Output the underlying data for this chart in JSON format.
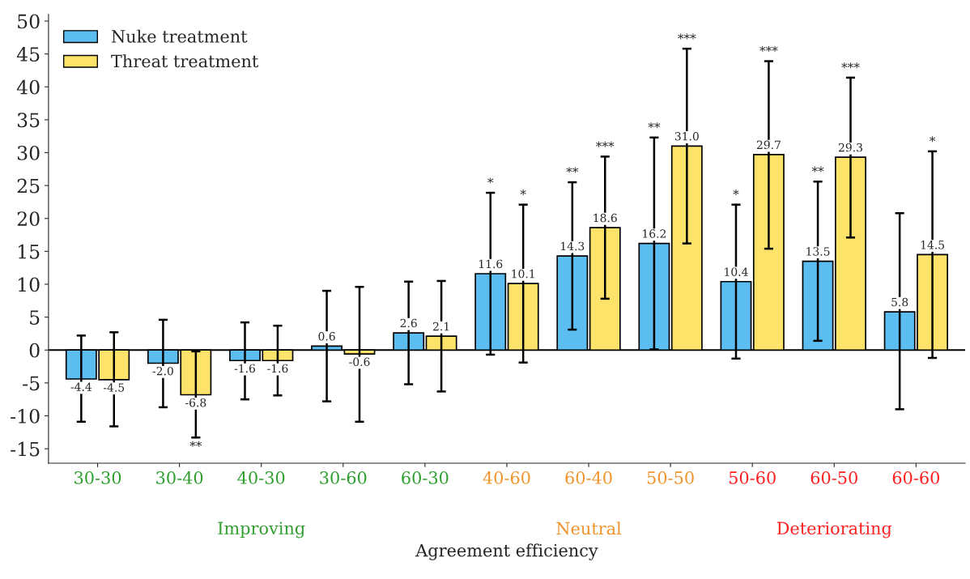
{
  "chart_data": {
    "type": "bar",
    "xlabel": "Agreement efficiency",
    "categories": [
      "30-30",
      "30-40",
      "40-30",
      "30-60",
      "60-30",
      "40-60",
      "60-40",
      "50-50",
      "50-60",
      "60-50",
      "60-60"
    ],
    "series": [
      {
        "name": "Nuke treatment",
        "color": "#5bbdf0",
        "values": [
          -4.4,
          -2.0,
          -1.6,
          0.6,
          2.6,
          11.6,
          14.3,
          16.2,
          10.4,
          13.5,
          5.8
        ],
        "value_labels": [
          "-4.4",
          "-2.0",
          "-1.6",
          "0.6",
          "2.6",
          "11.6",
          "14.3",
          "16.2",
          "10.4",
          "13.5",
          "5.8"
        ],
        "errors": [
          [
            -10.9,
            2.2
          ],
          [
            -8.7,
            4.6
          ],
          [
            -7.5,
            4.2
          ],
          [
            -7.8,
            9.0
          ],
          [
            -5.2,
            10.4
          ],
          [
            -0.7,
            23.9
          ],
          [
            3.1,
            25.5
          ],
          [
            0.1,
            32.3
          ],
          [
            -1.3,
            22.1
          ],
          [
            1.4,
            25.6
          ],
          [
            -9.0,
            20.8
          ]
        ]
      },
      {
        "name": "Threat treatment",
        "color": "#fde36a",
        "values": [
          -4.5,
          -6.8,
          -1.6,
          -0.6,
          2.1,
          10.1,
          18.6,
          31.0,
          29.7,
          29.3,
          14.5
        ],
        "value_labels": [
          "-4.5",
          "-6.8",
          "-1.6",
          "-0.6",
          "2.1",
          "10.1",
          "18.6",
          "31.0",
          "29.7",
          "29.3",
          "14.5"
        ],
        "errors": [
          [
            -11.6,
            2.7
          ],
          [
            -13.3,
            -0.2
          ],
          [
            -6.9,
            3.7
          ],
          [
            -10.9,
            9.6
          ],
          [
            -6.3,
            10.5
          ],
          [
            -1.9,
            22.1
          ],
          [
            7.8,
            29.4
          ],
          [
            16.2,
            45.8
          ],
          [
            15.4,
            43.9
          ],
          [
            17.1,
            41.4
          ],
          [
            -1.2,
            30.2
          ]
        ]
      }
    ],
    "ylim": [
      -17.2,
      51
    ],
    "yticks": [
      -15,
      -10,
      -5,
      0,
      5,
      10,
      15,
      20,
      25,
      30,
      35,
      40,
      45,
      50
    ],
    "legend": "top left",
    "grid": false,
    "ref_lines": [
      {
        "axis": "y",
        "value": 0
      }
    ],
    "annotations": [
      "Improving",
      "Neutral",
      "Deteriorating",
      "**",
      "*",
      "*",
      "**",
      "***",
      "**",
      "***",
      "*",
      "***",
      "**",
      "***",
      "*"
    ]
  }
}
